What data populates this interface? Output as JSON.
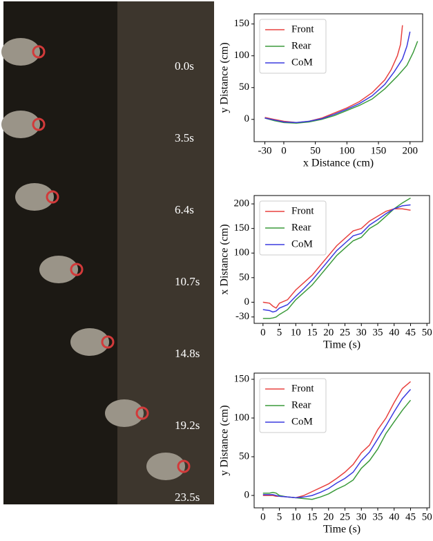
{
  "frames": [
    "0.0s",
    "3.5s",
    "6.4s",
    "10.7s",
    "14.8s",
    "19.2s",
    "23.5s"
  ],
  "chart_data": [
    {
      "type": "line",
      "xlabel": "x Distance (cm)",
      "ylabel": "y Distance (cm)",
      "xlim": [
        -47,
        220
      ],
      "xticks": [
        -30,
        0,
        50,
        100,
        150,
        200
      ],
      "ylim": [
        -35,
        166
      ],
      "yticks": [
        0,
        50,
        100,
        150
      ],
      "legend": "upper left",
      "series": [
        {
          "name": "Front",
          "color": "#e8403e",
          "x": [
            -30,
            -15,
            0,
            20,
            40,
            60,
            80,
            100,
            120,
            140,
            160,
            170,
            180,
            185,
            188
          ],
          "values": [
            3,
            0,
            -3,
            -5,
            -3,
            2,
            10,
            18,
            28,
            42,
            62,
            78,
            100,
            118,
            148
          ]
        },
        {
          "name": "Rear",
          "color": "#3a9a3a",
          "x": [
            -30,
            -15,
            0,
            20,
            40,
            60,
            80,
            100,
            120,
            140,
            160,
            180,
            195,
            205,
            212
          ],
          "values": [
            2,
            -2,
            -5,
            -6,
            -4,
            0,
            6,
            14,
            22,
            32,
            48,
            68,
            85,
            105,
            123
          ]
        },
        {
          "name": "CoM",
          "color": "#3a3adf",
          "x": [
            -30,
            -15,
            0,
            20,
            40,
            60,
            80,
            100,
            120,
            140,
            160,
            175,
            188,
            195,
            200
          ],
          "values": [
            2,
            -1,
            -4,
            -5,
            -3,
            1,
            8,
            16,
            25,
            37,
            55,
            75,
            95,
            115,
            138
          ]
        }
      ]
    },
    {
      "type": "line",
      "xlabel": "Time (s)",
      "ylabel": "x Distance (cm)",
      "xlim": [
        -2.7,
        50.8
      ],
      "xticks": [
        0,
        5,
        10,
        15,
        20,
        25,
        30,
        35,
        40,
        45,
        50
      ],
      "ylim": [
        -43,
        217
      ],
      "yticks": [
        -30,
        0,
        50,
        100,
        150,
        200
      ],
      "legend": "upper left",
      "x": [
        0,
        2,
        3,
        4,
        5,
        7.5,
        10,
        12.5,
        15,
        17.5,
        20,
        22.5,
        25,
        27.5,
        30,
        32.5,
        35,
        37.5,
        40,
        42.5,
        45
      ],
      "series": [
        {
          "name": "Front",
          "color": "#e8403e",
          "values": [
            0,
            -2,
            -8,
            -12,
            -2,
            5,
            25,
            40,
            55,
            75,
            95,
            115,
            130,
            145,
            150,
            165,
            175,
            185,
            190,
            190,
            187
          ]
        },
        {
          "name": "Rear",
          "color": "#3a9a3a",
          "values": [
            -33,
            -33,
            -32,
            -30,
            -25,
            -15,
            5,
            20,
            35,
            55,
            75,
            95,
            110,
            125,
            132,
            150,
            160,
            175,
            190,
            202,
            212
          ]
        },
        {
          "name": "CoM",
          "color": "#3a3adf",
          "values": [
            -15,
            -17,
            -20,
            -18,
            -12,
            -5,
            12,
            28,
            45,
            65,
            85,
            105,
            120,
            135,
            140,
            157,
            168,
            180,
            190,
            196,
            198
          ]
        }
      ]
    },
    {
      "type": "line",
      "xlabel": "Time (s)",
      "ylabel": "y Distance (cm)",
      "xlim": [
        -2.7,
        50.8
      ],
      "xticks": [
        0,
        5,
        10,
        15,
        20,
        25,
        30,
        35,
        40,
        45,
        50
      ],
      "ylim": [
        -16,
        158
      ],
      "yticks": [
        0,
        50,
        100,
        150
      ],
      "legend": "upper left",
      "x": [
        0,
        2,
        3,
        4,
        5,
        7.5,
        10,
        12.5,
        15,
        17.5,
        20,
        22.5,
        25,
        27.5,
        30,
        32.5,
        35,
        37.5,
        40,
        42.5,
        45
      ],
      "series": [
        {
          "name": "Front",
          "color": "#e8403e",
          "values": [
            0,
            0,
            0,
            -1,
            -1,
            -2,
            -3,
            0,
            5,
            10,
            15,
            22,
            30,
            40,
            55,
            65,
            85,
            100,
            120,
            138,
            147
          ]
        },
        {
          "name": "Rear",
          "color": "#3a9a3a",
          "values": [
            3,
            3,
            4,
            3,
            0,
            -2,
            -3,
            -4,
            -5,
            -2,
            2,
            8,
            13,
            20,
            35,
            45,
            60,
            80,
            95,
            110,
            123
          ]
        },
        {
          "name": "CoM",
          "color": "#3a3adf",
          "values": [
            1,
            1,
            1,
            0,
            -1,
            -2,
            -3,
            -2,
            0,
            4,
            9,
            16,
            22,
            30,
            45,
            56,
            73,
            90,
            108,
            125,
            137
          ]
        }
      ]
    }
  ]
}
